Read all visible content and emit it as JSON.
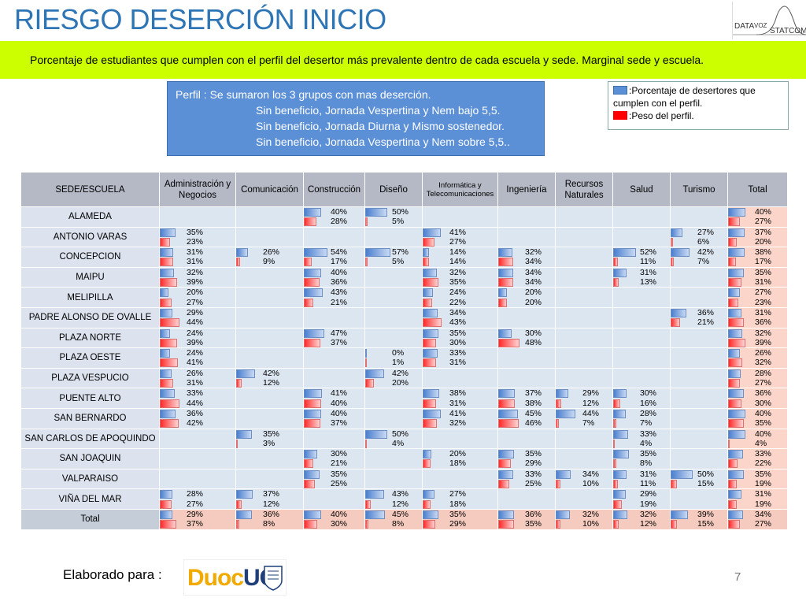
{
  "title": "RIESGO DESERCIÓN INICIO",
  "logo": {
    "left": "DATA",
    "right": "STATCOM",
    "middle": "VOZ"
  },
  "banner_text": "Porcentaje de estudiantes que cumplen con el perfil del desertor más prevalente dentro de cada escuela y sede. Marginal sede y escuela.",
  "profile": {
    "line1": "Perfil :  Se sumaron los 3 grupos con mas deserción.",
    "line2": "Sin beneficio, Jornada Vespertina y Nem bajo 5,5.",
    "line3": "Sin beneficio, Jornada Diurna y Mismo sostenedor.",
    "line4": "Sin beneficio, Jornada Vespertina y Nem sobre 5,5.."
  },
  "legend": {
    "blue_label": ":Porcentaje de desertores que cumplen con el perfil.",
    "red_label": ":Peso del perfil.",
    "colors": {
      "blue": "#5b8fd6",
      "red": "#ff0000"
    }
  },
  "table": {
    "headers": [
      "SEDE/ESCUELA",
      "Administración y Negocios",
      "Comunicación",
      "Construcción",
      "Diseño",
      "Informática y Telecomunicaciones",
      "Ingeniería",
      "Recursos Naturales",
      "Salud",
      "Turismo",
      "Total"
    ],
    "rows": [
      {
        "name": "ALAMEDA",
        "cells": [
          null,
          null,
          [
            "40%",
            "28%"
          ],
          [
            "50%",
            "5%"
          ],
          null,
          null,
          null,
          null,
          null,
          [
            "40%",
            "27%"
          ]
        ]
      },
      {
        "name": "ANTONIO VARAS",
        "cells": [
          [
            "35%",
            "23%"
          ],
          null,
          null,
          null,
          [
            "41%",
            "27%"
          ],
          null,
          null,
          null,
          [
            "27%",
            "6%"
          ],
          [
            "37%",
            "20%"
          ]
        ]
      },
      {
        "name": "CONCEPCION",
        "cells": [
          [
            "31%",
            "31%"
          ],
          [
            "26%",
            "9%"
          ],
          [
            "54%",
            "17%"
          ],
          [
            "57%",
            "5%"
          ],
          [
            "14%",
            "14%"
          ],
          [
            "32%",
            "34%"
          ],
          null,
          [
            "52%",
            "11%"
          ],
          [
            "42%",
            "7%"
          ],
          [
            "38%",
            "17%"
          ]
        ]
      },
      {
        "name": "MAIPU",
        "cells": [
          [
            "32%",
            "39%"
          ],
          null,
          [
            "40%",
            "36%"
          ],
          null,
          [
            "32%",
            "35%"
          ],
          [
            "34%",
            "34%"
          ],
          null,
          [
            "31%",
            "13%"
          ],
          null,
          [
            "35%",
            "31%"
          ]
        ]
      },
      {
        "name": "MELIPILLA",
        "cells": [
          [
            "20%",
            "27%"
          ],
          null,
          [
            "43%",
            "21%"
          ],
          null,
          [
            "24%",
            "22%"
          ],
          [
            "20%",
            "20%"
          ],
          null,
          null,
          null,
          [
            "27%",
            "23%"
          ]
        ]
      },
      {
        "name": "PADRE ALONSO DE OVALLE",
        "cells": [
          [
            "29%",
            "44%"
          ],
          null,
          null,
          null,
          [
            "34%",
            "43%"
          ],
          null,
          null,
          null,
          [
            "36%",
            "21%"
          ],
          [
            "31%",
            "36%"
          ]
        ]
      },
      {
        "name": "PLAZA NORTE",
        "cells": [
          [
            "24%",
            "39%"
          ],
          null,
          [
            "47%",
            "37%"
          ],
          null,
          [
            "35%",
            "30%"
          ],
          [
            "30%",
            "48%"
          ],
          null,
          null,
          null,
          [
            "32%",
            "39%"
          ]
        ]
      },
      {
        "name": "PLAZA OESTE",
        "cells": [
          [
            "24%",
            "41%"
          ],
          null,
          null,
          [
            "0%",
            "1%"
          ],
          [
            "33%",
            "31%"
          ],
          null,
          null,
          null,
          null,
          [
            "26%",
            "32%"
          ]
        ]
      },
      {
        "name": "PLAZA VESPUCIO",
        "cells": [
          [
            "26%",
            "31%"
          ],
          [
            "42%",
            "12%"
          ],
          null,
          [
            "42%",
            "20%"
          ],
          null,
          null,
          null,
          null,
          null,
          [
            "28%",
            "27%"
          ]
        ]
      },
      {
        "name": "PUENTE ALTO",
        "cells": [
          [
            "33%",
            "44%"
          ],
          null,
          [
            "41%",
            "40%"
          ],
          null,
          [
            "38%",
            "31%"
          ],
          [
            "37%",
            "38%"
          ],
          [
            "29%",
            "12%"
          ],
          [
            "30%",
            "16%"
          ],
          null,
          [
            "36%",
            "30%"
          ]
        ]
      },
      {
        "name": "SAN BERNARDO",
        "cells": [
          [
            "36%",
            "42%"
          ],
          null,
          [
            "40%",
            "37%"
          ],
          null,
          [
            "41%",
            "32%"
          ],
          [
            "45%",
            "46%"
          ],
          [
            "44%",
            "7%"
          ],
          [
            "28%",
            "7%"
          ],
          null,
          [
            "40%",
            "35%"
          ]
        ]
      },
      {
        "name": "SAN CARLOS DE APOQUINDO",
        "cells": [
          null,
          [
            "35%",
            "3%"
          ],
          null,
          [
            "50%",
            "4%"
          ],
          null,
          null,
          null,
          [
            "33%",
            "4%"
          ],
          null,
          [
            "40%",
            "4%"
          ]
        ]
      },
      {
        "name": "SAN JOAQUIN",
        "cells": [
          null,
          null,
          [
            "30%",
            "21%"
          ],
          null,
          [
            "20%",
            "18%"
          ],
          [
            "35%",
            "29%"
          ],
          null,
          [
            "35%",
            "8%"
          ],
          null,
          [
            "33%",
            "22%"
          ]
        ]
      },
      {
        "name": "VALPARAISO",
        "cells": [
          null,
          null,
          [
            "35%",
            "25%"
          ],
          null,
          null,
          [
            "33%",
            "25%"
          ],
          [
            "34%",
            "10%"
          ],
          [
            "31%",
            "11%"
          ],
          [
            "50%",
            "15%"
          ],
          [
            "35%",
            "19%"
          ]
        ]
      },
      {
        "name": "VIÑA DEL MAR",
        "cells": [
          [
            "28%",
            "27%"
          ],
          [
            "37%",
            "12%"
          ],
          null,
          [
            "43%",
            "12%"
          ],
          [
            "27%",
            "18%"
          ],
          null,
          null,
          [
            "29%",
            "19%"
          ],
          null,
          [
            "31%",
            "19%"
          ]
        ]
      },
      {
        "name": "Total",
        "cells": [
          [
            "29%",
            "37%"
          ],
          [
            "36%",
            "8%"
          ],
          [
            "40%",
            "30%"
          ],
          [
            "45%",
            "8%"
          ],
          [
            "35%",
            "29%"
          ],
          [
            "36%",
            "35%"
          ],
          [
            "32%",
            "10%"
          ],
          [
            "32%",
            "12%"
          ],
          [
            "39%",
            "15%"
          ],
          [
            "34%",
            "27%"
          ]
        ]
      }
    ]
  },
  "footer": {
    "label": "Elaborado para :",
    "logo_part1": "Duoc",
    "logo_part2": "UC",
    "page_number": "7"
  }
}
